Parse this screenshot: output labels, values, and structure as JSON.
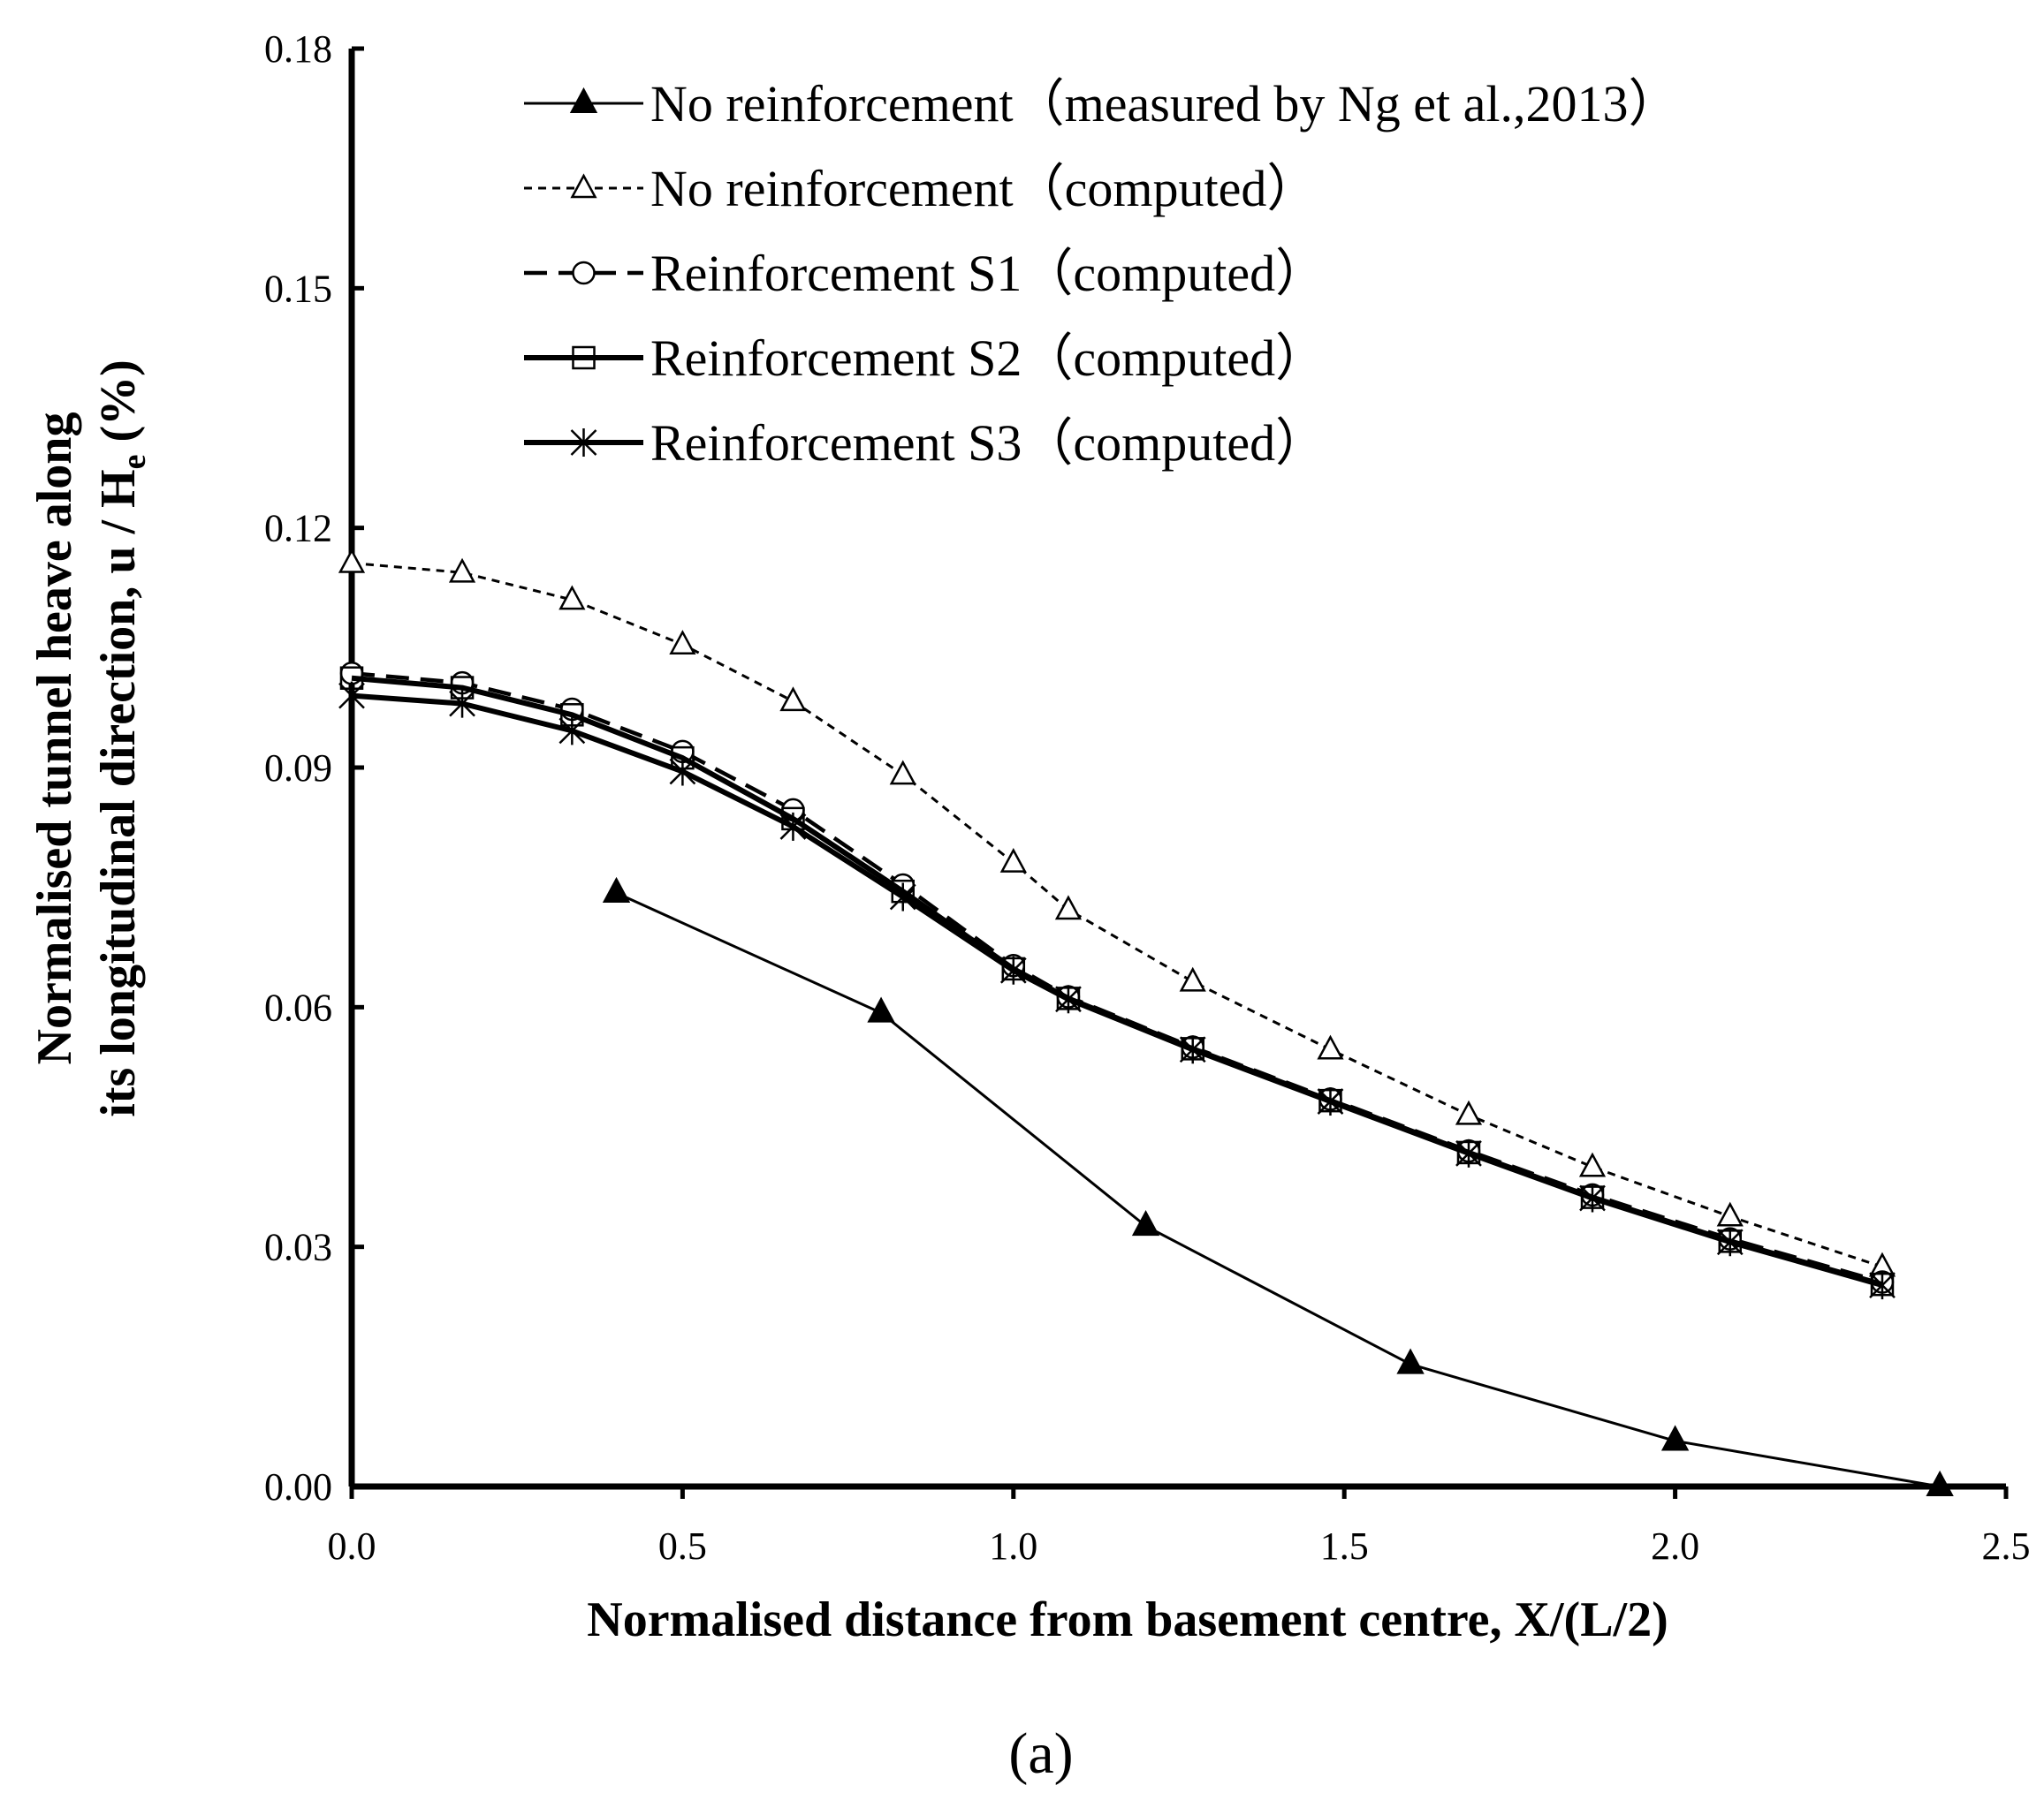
{
  "chart_data": {
    "type": "line",
    "xlabel": "Normalised distance from basement centre, X/(L/2)",
    "ylabel_line1": "Normalised tunnel heave along",
    "ylabel_line2": "its longitudinal direction, u / H",
    "ylabel_sub": "e",
    "ylabel_unit": " (%)",
    "xlim": [
      0,
      2.5
    ],
    "ylim": [
      0,
      0.18
    ],
    "xticks": [
      "0.0",
      "0.5",
      "1.0",
      "1.5",
      "2.0",
      "2.5"
    ],
    "yticks": [
      "0.00",
      "0.03",
      "0.06",
      "0.09",
      "0.12",
      "0.15",
      "0.18"
    ],
    "legend_position": "top",
    "caption": "(a)",
    "series": [
      {
        "name": "No reinforcement（measured by Ng et al.,2013）",
        "marker": "filled-triangle",
        "line": "solid-thin",
        "x": [
          0.4,
          0.8,
          1.2,
          1.6,
          2.0,
          2.4
        ],
        "y": [
          0.0743,
          0.0593,
          0.0326,
          0.0153,
          0.0057,
          0.0
        ]
      },
      {
        "name": "No reinforcement（computed）",
        "marker": "open-triangle",
        "line": "dotted",
        "x": [
          0.0,
          0.167,
          0.333,
          0.5,
          0.667,
          0.833,
          1.0,
          1.083,
          1.271,
          1.479,
          1.688,
          1.875,
          2.083,
          2.313
        ],
        "y": [
          0.1156,
          0.1144,
          0.111,
          0.1054,
          0.0983,
          0.0891,
          0.0781,
          0.0722,
          0.0632,
          0.0547,
          0.0465,
          0.04,
          0.0338,
          0.0275
        ]
      },
      {
        "name": "Reinforcement S1（computed）",
        "marker": "open-circle",
        "line": "dashed",
        "x": [
          0.0,
          0.167,
          0.333,
          0.5,
          0.667,
          0.833,
          1.0,
          1.083,
          1.271,
          1.479,
          1.688,
          1.875,
          2.083,
          2.313
        ],
        "y": [
          0.1018,
          0.1006,
          0.0973,
          0.092,
          0.0847,
          0.0753,
          0.0652,
          0.0613,
          0.055,
          0.0485,
          0.042,
          0.0365,
          0.031,
          0.0256
        ]
      },
      {
        "name": "Reinforcement S2（computed）",
        "marker": "open-square",
        "line": "solid-thick",
        "x": [
          0.0,
          0.167,
          0.333,
          0.5,
          0.667,
          0.833,
          1.0,
          1.083,
          1.271,
          1.479,
          1.688,
          1.875,
          2.083,
          2.313
        ],
        "y": [
          0.1012,
          0.1,
          0.0966,
          0.0912,
          0.0836,
          0.0745,
          0.0648,
          0.0611,
          0.0548,
          0.0483,
          0.0418,
          0.0362,
          0.0307,
          0.0253
        ]
      },
      {
        "name": "Reinforcement S3（computed）",
        "marker": "asterisk",
        "line": "solid-thick",
        "x": [
          0.0,
          0.167,
          0.333,
          0.5,
          0.667,
          0.833,
          1.0,
          1.083,
          1.271,
          1.479,
          1.688,
          1.875,
          2.083,
          2.313
        ],
        "y": [
          0.099,
          0.098,
          0.0946,
          0.0895,
          0.0826,
          0.0738,
          0.0646,
          0.061,
          0.0547,
          0.0482,
          0.0417,
          0.0361,
          0.0306,
          0.0252
        ]
      }
    ]
  }
}
